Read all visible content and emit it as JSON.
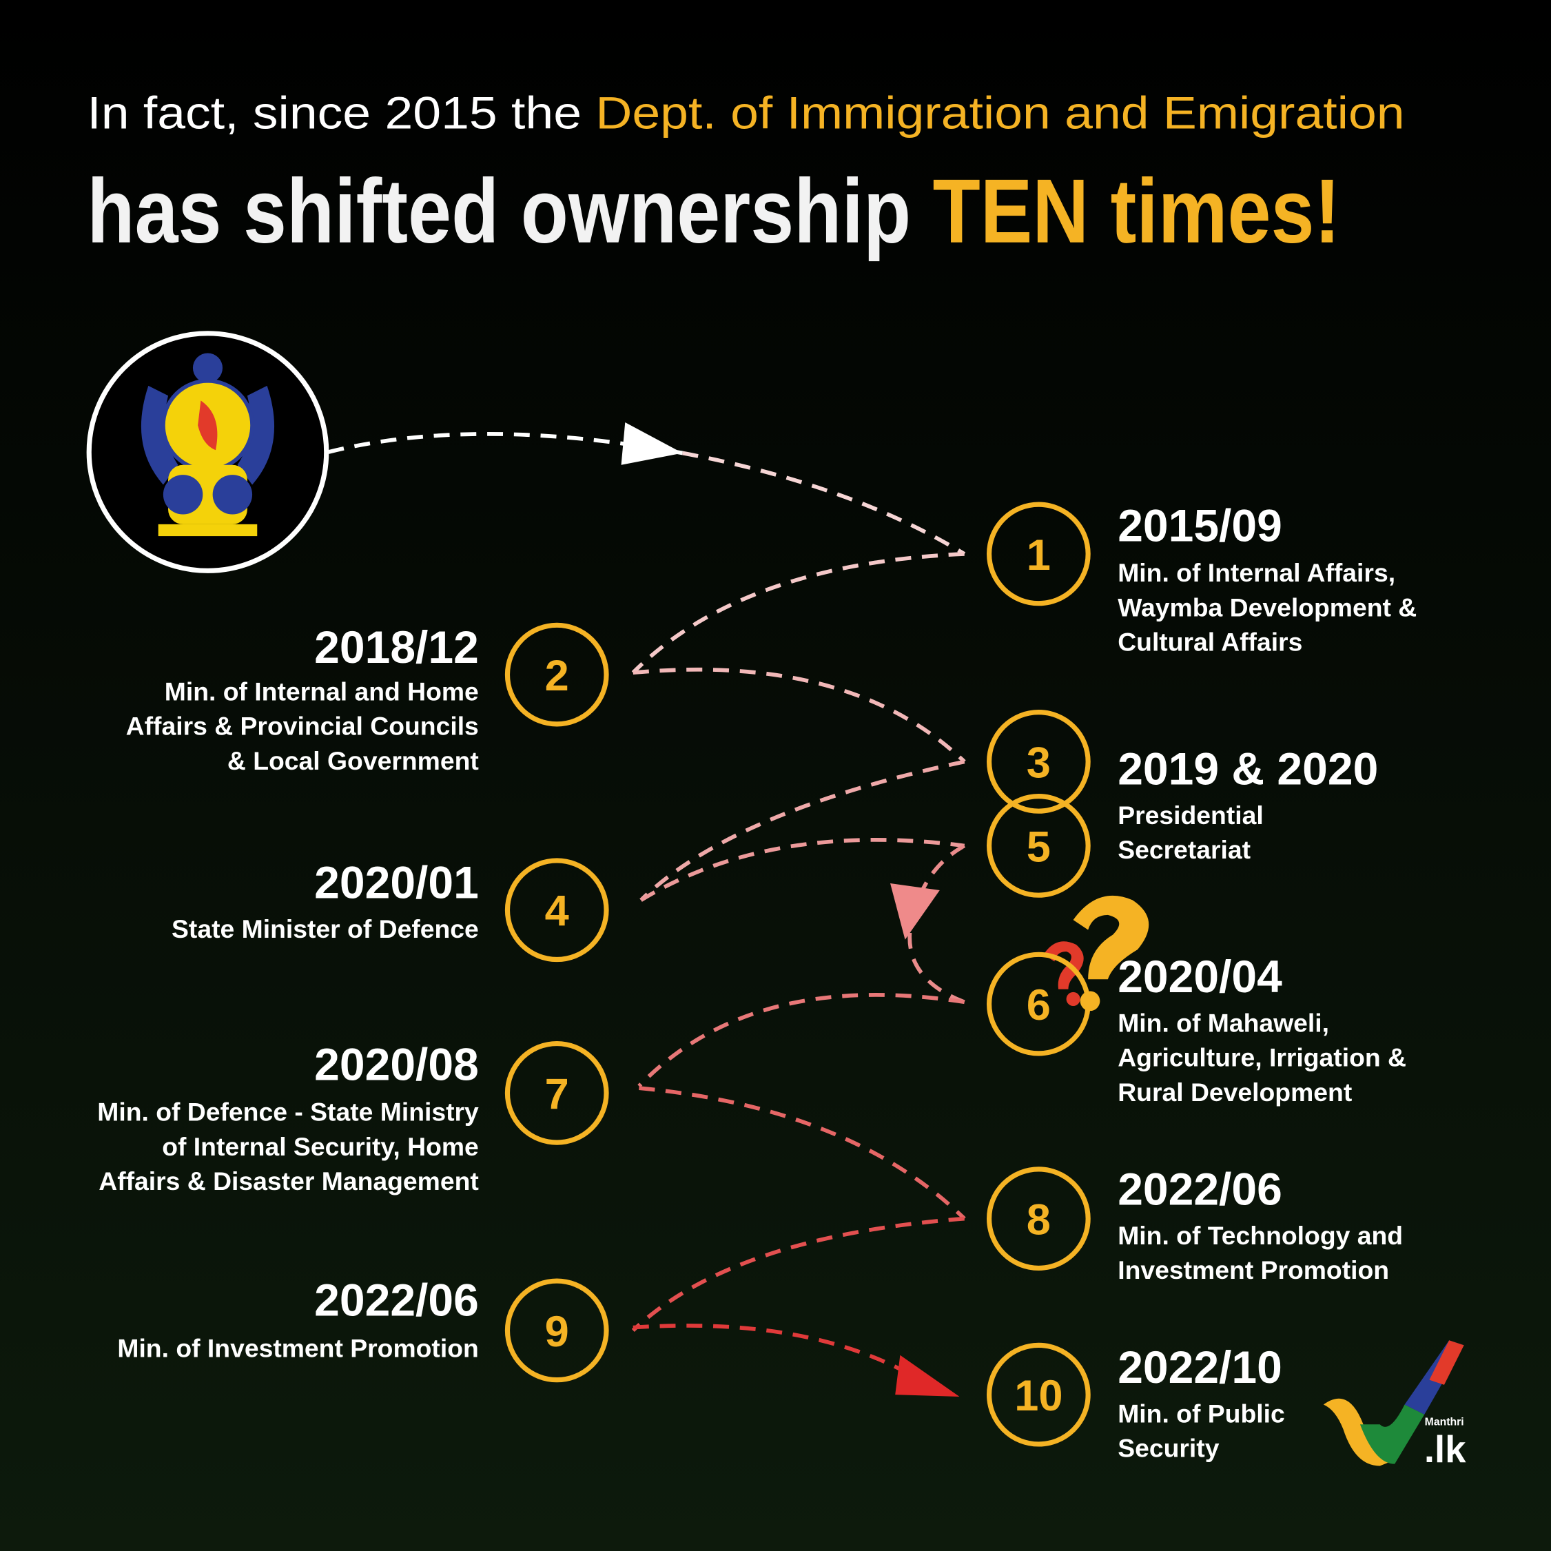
{
  "header": {
    "line1": {
      "plain": "In fact, since 2015 the ",
      "highlight": "Dept. of Immigration and Emigration"
    },
    "line2": {
      "plain": "has shifted ownership ",
      "highlight": "TEN times!"
    }
  },
  "steps": [
    {
      "number": "1",
      "date": "2015/09",
      "lines": [
        "Min. of Internal Affairs,",
        "Waymba Development &",
        "Cultural Affairs"
      ]
    },
    {
      "number": "2",
      "date": "2018/12",
      "lines": [
        "Min. of Internal and Home",
        "Affairs & Provincial Councils",
        "& Local Government"
      ]
    },
    {
      "number": "3",
      "date": "2019 & 2020",
      "lines": [
        "Presidential",
        "Secretariat"
      ]
    },
    {
      "number": "4",
      "date": "2020/01",
      "lines": [
        "State Minister of Defence"
      ]
    },
    {
      "number": "5"
    },
    {
      "number": "6",
      "date": "2020/04",
      "lines": [
        "Min. of Mahaweli,",
        "Agriculture, Irrigation &",
        "Rural Development"
      ]
    },
    {
      "number": "7",
      "date": "2020/08",
      "lines": [
        "Min. of Defence - State Ministry",
        "of Internal Security, Home",
        "Affairs & Disaster Management"
      ]
    },
    {
      "number": "8",
      "date": "2022/06",
      "lines": [
        "Min. of Technology and",
        "Investment Promotion"
      ]
    },
    {
      "number": "9",
      "date": "2022/06",
      "lines": [
        "Min. of Investment Promotion"
      ]
    },
    {
      "number": "10",
      "date": "2022/10",
      "lines": [
        "Min. of Public",
        "Security"
      ]
    }
  ],
  "logo": {
    "name": "Manthri",
    "domain": ".lk"
  }
}
